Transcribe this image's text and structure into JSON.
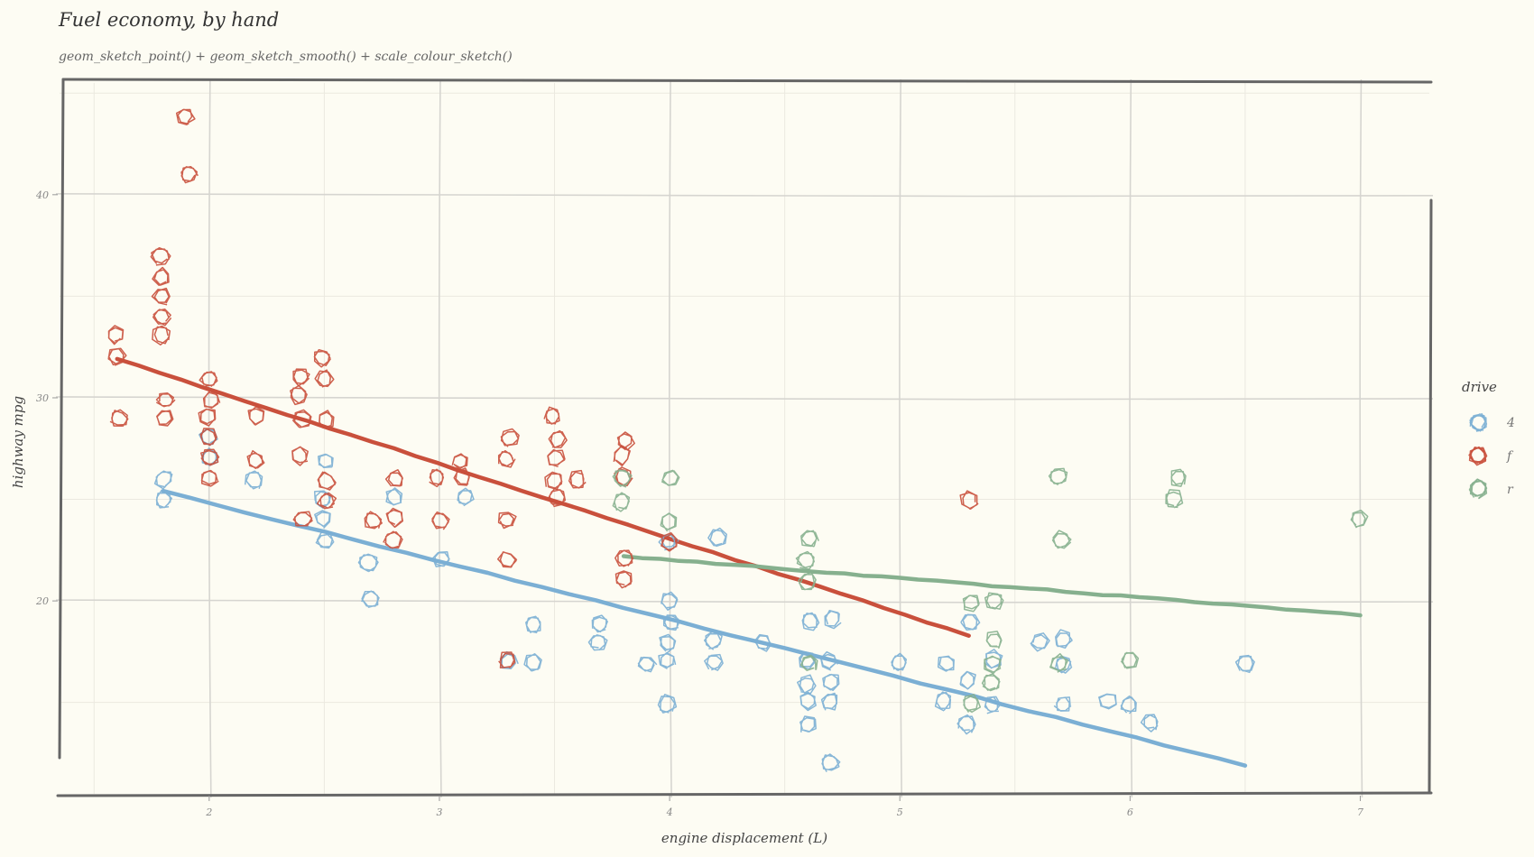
{
  "chart_data": {
    "type": "scatter",
    "title": "Fuel economy, by hand",
    "subtitle": "geom_sketch_point() + geom_sketch_smooth() + scale_colour_sketch()",
    "xlabel": "engine displacement (L)",
    "ylabel": "highway mpg",
    "xlim": [
      1.35,
      7.3
    ],
    "ylim": [
      10.5,
      45.5
    ],
    "xticks": [
      2,
      3,
      4,
      5,
      6,
      7
    ],
    "yticks": [
      20,
      30,
      40
    ],
    "grid": true,
    "legend": {
      "title": "drive",
      "position": "right",
      "entries": [
        "4",
        "f",
        "r"
      ]
    },
    "colors": {
      "4": "#7bafd4",
      "f": "#c9503c",
      "r": "#86b08e"
    },
    "series": [
      {
        "name": "4",
        "points": [
          [
            1.8,
            25
          ],
          [
            1.8,
            26
          ],
          [
            2.0,
            27
          ],
          [
            2.0,
            28
          ],
          [
            2.2,
            26
          ],
          [
            2.5,
            25
          ],
          [
            2.5,
            27
          ],
          [
            2.5,
            24
          ],
          [
            2.5,
            23
          ],
          [
            2.7,
            22
          ],
          [
            2.7,
            20
          ],
          [
            2.8,
            25
          ],
          [
            3.0,
            22
          ],
          [
            3.1,
            25
          ],
          [
            3.4,
            19
          ],
          [
            3.4,
            17
          ],
          [
            3.3,
            17
          ],
          [
            3.7,
            19
          ],
          [
            3.7,
            18
          ],
          [
            3.9,
            17
          ],
          [
            4.0,
            17
          ],
          [
            4.0,
            20
          ],
          [
            4.0,
            19
          ],
          [
            4.0,
            15
          ],
          [
            4.0,
            18
          ],
          [
            4.0,
            23
          ],
          [
            4.2,
            17
          ],
          [
            4.2,
            18
          ],
          [
            4.2,
            23
          ],
          [
            4.4,
            18
          ],
          [
            4.6,
            17
          ],
          [
            4.6,
            19
          ],
          [
            4.6,
            16
          ],
          [
            4.7,
            19
          ],
          [
            4.7,
            17
          ],
          [
            4.7,
            15
          ],
          [
            4.7,
            12
          ],
          [
            4.7,
            16
          ],
          [
            4.6,
            15
          ],
          [
            4.6,
            14
          ],
          [
            5.0,
            17
          ],
          [
            5.2,
            15
          ],
          [
            5.2,
            17
          ],
          [
            5.3,
            16
          ],
          [
            5.3,
            19
          ],
          [
            5.3,
            14
          ],
          [
            5.4,
            15
          ],
          [
            5.4,
            17
          ],
          [
            5.7,
            18
          ],
          [
            5.7,
            17
          ],
          [
            5.7,
            15
          ],
          [
            5.6,
            18
          ],
          [
            5.9,
            15
          ],
          [
            6.0,
            15
          ],
          [
            6.1,
            14
          ],
          [
            6.5,
            17
          ]
        ]
      },
      {
        "name": "f",
        "points": [
          [
            1.6,
            33
          ],
          [
            1.6,
            32
          ],
          [
            1.6,
            29
          ],
          [
            1.8,
            37
          ],
          [
            1.8,
            36
          ],
          [
            1.8,
            35
          ],
          [
            1.8,
            34
          ],
          [
            1.8,
            33
          ],
          [
            1.8,
            30
          ],
          [
            1.8,
            29
          ],
          [
            1.9,
            44
          ],
          [
            1.9,
            41
          ],
          [
            2.0,
            31
          ],
          [
            2.0,
            30
          ],
          [
            2.0,
            29
          ],
          [
            2.0,
            28
          ],
          [
            2.0,
            27
          ],
          [
            2.0,
            26
          ],
          [
            2.2,
            29
          ],
          [
            2.2,
            27
          ],
          [
            2.4,
            31
          ],
          [
            2.4,
            30
          ],
          [
            2.4,
            29
          ],
          [
            2.4,
            27
          ],
          [
            2.4,
            24
          ],
          [
            2.5,
            32
          ],
          [
            2.5,
            31
          ],
          [
            2.5,
            29
          ],
          [
            2.5,
            26
          ],
          [
            2.5,
            25
          ],
          [
            2.7,
            24
          ],
          [
            2.8,
            26
          ],
          [
            2.8,
            24
          ],
          [
            2.8,
            23
          ],
          [
            3.0,
            26
          ],
          [
            3.0,
            24
          ],
          [
            3.1,
            27
          ],
          [
            3.1,
            26
          ],
          [
            3.3,
            28
          ],
          [
            3.3,
            27
          ],
          [
            3.3,
            24
          ],
          [
            3.3,
            22
          ],
          [
            3.3,
            17
          ],
          [
            3.5,
            29
          ],
          [
            3.5,
            28
          ],
          [
            3.5,
            27
          ],
          [
            3.5,
            26
          ],
          [
            3.5,
            25
          ],
          [
            3.6,
            26
          ],
          [
            3.8,
            28
          ],
          [
            3.8,
            27
          ],
          [
            3.8,
            26
          ],
          [
            3.8,
            22
          ],
          [
            3.8,
            21
          ],
          [
            4.0,
            23
          ],
          [
            5.3,
            25
          ]
        ]
      },
      {
        "name": "r",
        "points": [
          [
            3.8,
            26
          ],
          [
            3.8,
            25
          ],
          [
            4.0,
            26
          ],
          [
            4.0,
            24
          ],
          [
            4.6,
            23
          ],
          [
            4.6,
            22
          ],
          [
            4.6,
            21
          ],
          [
            4.6,
            17
          ],
          [
            5.3,
            20
          ],
          [
            5.3,
            15
          ],
          [
            5.4,
            20
          ],
          [
            5.4,
            18
          ],
          [
            5.4,
            17
          ],
          [
            5.4,
            16
          ],
          [
            5.7,
            26
          ],
          [
            5.7,
            23
          ],
          [
            5.7,
            17
          ],
          [
            6.0,
            17
          ],
          [
            6.2,
            26
          ],
          [
            6.2,
            25
          ],
          [
            7.0,
            24
          ]
        ]
      }
    ],
    "smooth": [
      {
        "name": "4",
        "x": [
          1.8,
          6.5
        ],
        "y": [
          25.4,
          11.9
        ]
      },
      {
        "name": "f",
        "x": [
          1.6,
          5.3
        ],
        "y": [
          31.9,
          18.3
        ]
      },
      {
        "name": "r",
        "x": [
          3.8,
          7.0
        ],
        "y": [
          22.2,
          19.3
        ]
      }
    ]
  }
}
